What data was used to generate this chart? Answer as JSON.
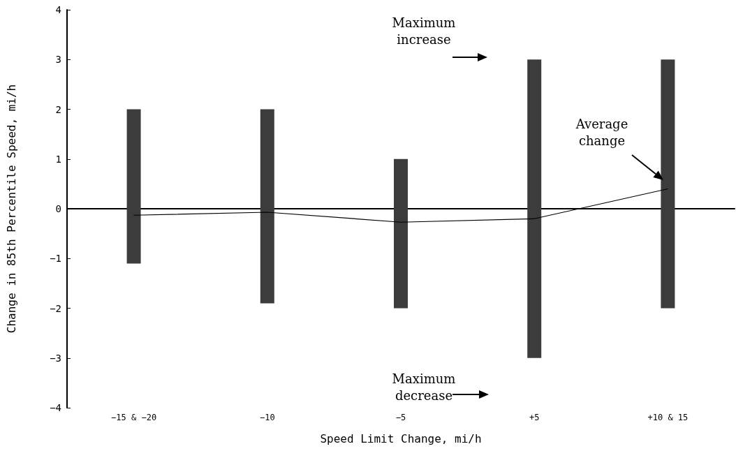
{
  "chart_data": {
    "type": "bar",
    "xlabel": "Speed Limit Change, mi/h",
    "ylabel": "Change in 85th Percentile Speed, mi/h",
    "categories": [
      "−15 & −20",
      "−10",
      "−5",
      "+5",
      "+10 & 15"
    ],
    "series": [
      {
        "color": "#3c3c3c",
        "base": [
          -1.1,
          -1.9,
          -2.0,
          -3.0,
          -2.0
        ],
        "values": [
          3.1,
          3.9,
          3.0,
          6.0,
          5.0
        ]
      },
      {
        "type": "line",
        "color": "#000000",
        "marker": "none",
        "values": [
          -0.13,
          -0.07,
          -0.27,
          -0.2,
          0.4
        ]
      }
    ],
    "ylim": [
      -4,
      4
    ],
    "yticks": [
      -4,
      -3,
      -2,
      -1,
      0,
      1,
      2,
      3,
      4
    ],
    "grid": false,
    "ref_lines": [
      {
        "axis": "y",
        "value": 0,
        "color": "#000000"
      }
    ],
    "annotations": [
      "Maximum increase",
      "Maximum decrease",
      "Average change"
    ]
  }
}
